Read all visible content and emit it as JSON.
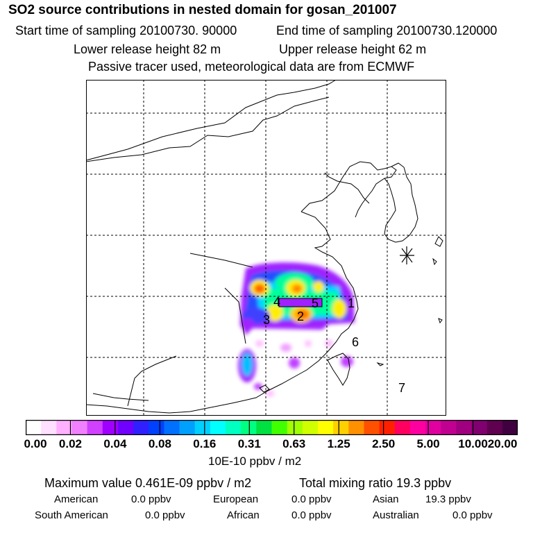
{
  "header": {
    "title": "SO2 source contributions in nested domain for gosan_201007",
    "start_time": "Start time of sampling 20100730. 90000",
    "end_time": "End time of sampling 20100730.120000",
    "lower_height": "Lower release height   82 m",
    "upper_height": "Upper release height   62 m",
    "note": "Passive tracer used, meteorological data are from ECMWF"
  },
  "map": {
    "region_labels": [
      "1",
      "2",
      "3",
      "4",
      "5",
      "6",
      "7"
    ],
    "receptor_marker": "asterisk-icon",
    "colors": {
      "coast": "#000000",
      "grid": "#000000"
    }
  },
  "colorbar": {
    "ticks": [
      "0.00",
      "0.02",
      "0.04",
      "0.08",
      "0.16",
      "0.31",
      "0.63",
      "1.25",
      "2.50",
      "5.00",
      "10.00",
      "20.00"
    ],
    "colors": [
      "#ffffff",
      "#ffe0ff",
      "#ffb0ff",
      "#f080ff",
      "#d040ff",
      "#a000ff",
      "#7000ff",
      "#3020ff",
      "#0040ff",
      "#0070ff",
      "#00a0ff",
      "#00d0ff",
      "#00ffff",
      "#00ffc0",
      "#00ff80",
      "#00e040",
      "#40ff00",
      "#a0ff00",
      "#d0ff00",
      "#ffff00",
      "#ffd000",
      "#ff9000",
      "#ff5000",
      "#ff2000",
      "#ff0060",
      "#ff00a0",
      "#e000a0",
      "#c00090",
      "#a00080",
      "#800070",
      "#600050",
      "#400040"
    ],
    "units": "10E-10 ppbv / m2"
  },
  "stats": {
    "max_value": "Maximum value  0.461E-09 ppbv / m2",
    "total_mixing": "Total mixing ratio       19.3 ppbv",
    "rows": [
      [
        {
          "label": "American",
          "value": "0.0 ppbv"
        },
        {
          "label": "European",
          "value": "0.0 ppbv"
        },
        {
          "label": "Asian",
          "value": "19.3 ppbv"
        }
      ],
      [
        {
          "label": "South American",
          "value": "0.0 ppbv"
        },
        {
          "label": "African",
          "value": "0.0 ppbv"
        },
        {
          "label": "Australian",
          "value": "0.0 ppbv"
        }
      ]
    ]
  }
}
